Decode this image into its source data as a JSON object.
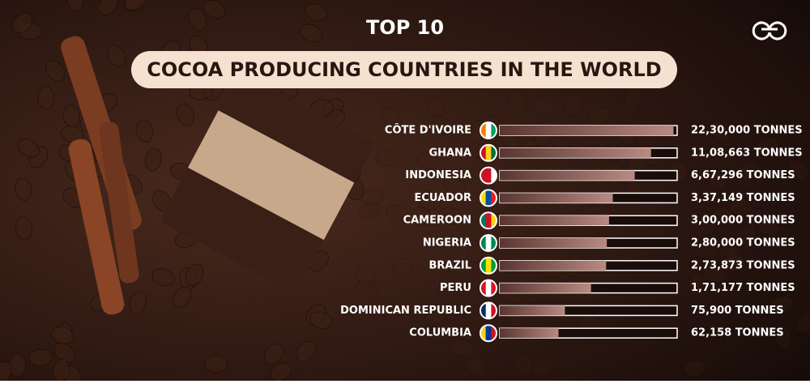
{
  "chart_data": {
    "type": "bar",
    "orientation": "horizontal",
    "title": "TOP 10",
    "subtitle": "COCOA PRODUCING COUNTRIES IN THE WORLD",
    "categories": [
      "CÔTE D'IVOIRE",
      "GHANA",
      "INDONESIA",
      "ECUADOR",
      "CAMEROON",
      "NIGERIA",
      "BRAZIL",
      "PERU",
      "DOMINICAN REPUBLIC",
      "COLUMBIA"
    ],
    "values": [
      2230000,
      1108663,
      667296,
      337149,
      300000,
      280000,
      273873,
      171177,
      75900,
      62158
    ],
    "value_labels": [
      "22,30,000 TONNES",
      "11,08,663 TONNES",
      "6,67,296 TONNES",
      "3,37,149 TONNES",
      "3,00,000 TONNES",
      "2,80,000 TONNES",
      "2,73,873 TONNES",
      "1,71,177 TONNES",
      "75,900 TONNES",
      "62,158 TONNES"
    ],
    "xlim": [
      10000,
      2500000
    ],
    "log_scale": true,
    "color": "#8a5a52"
  }
}
